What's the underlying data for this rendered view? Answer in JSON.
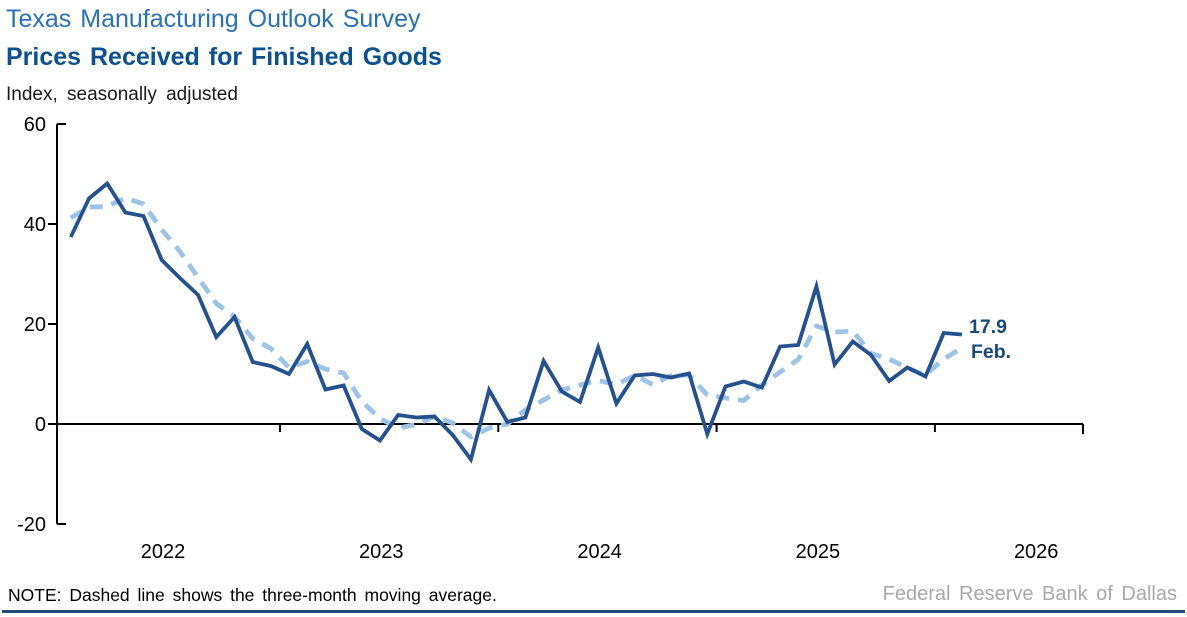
{
  "header": {
    "title_line1": "Texas Manufacturing Outlook Survey",
    "title_line2": "Prices Received for Finished Goods",
    "units_caption": "Index, seasonally adjusted"
  },
  "annotation": {
    "value_label": "17.9",
    "month_label": "Feb.",
    "color": "#17497E"
  },
  "footer": {
    "note": "NOTE: Dashed line shows the three-month moving average.",
    "source": "Federal Reserve Bank of Dallas"
  },
  "colors": {
    "title_primary": "#2970B8",
    "title_bold": "#0B5192",
    "axis_black": "#000000",
    "solid_line_navy": "#24518F",
    "dashed_line_lightblue": "#9DC3E6",
    "source_gray": "#A9A9A9",
    "bottom_rule_navy": "#1F4E79"
  },
  "chart_data": {
    "type": "line",
    "title": "Prices Received for Finished Goods",
    "subtitle": "Texas Manufacturing Outlook Survey",
    "ylabel": "Index, seasonally adjusted",
    "xlabel": "",
    "ylim": [
      -20,
      60
    ],
    "yticks": [
      60,
      40,
      20,
      0,
      -20
    ],
    "grid": false,
    "legend_position": "none",
    "axis_color": "#000000",
    "x_unit": "month",
    "x_start_month": "2022-01",
    "x_end_month": "2026-02",
    "x_tick_years": [
      "2022",
      "2023",
      "2024",
      "2025",
      "2026"
    ],
    "latest_point": {
      "month": "Feb.",
      "value": 17.9
    },
    "series": [
      {
        "name": "Prices received for finished goods (monthly index)",
        "style": "solid",
        "color": "#24518F",
        "values": [
          37.4,
          45.1,
          48.1,
          42.3,
          41.6,
          32.8,
          29.2,
          25.8,
          17.4,
          21.4,
          12.4,
          11.6,
          10.0,
          16.0,
          6.9,
          7.7,
          -1.0,
          -3.3,
          1.8,
          1.3,
          1.5,
          -2.2,
          -7.1,
          6.8,
          0.4,
          1.3,
          12.6,
          6.5,
          4.4,
          15.3,
          4.1,
          9.7,
          10.0,
          9.3,
          10.1,
          -2.0,
          7.5,
          8.5,
          7.3,
          15.5,
          15.8,
          27.5,
          11.9,
          16.5,
          13.8,
          8.6,
          11.3,
          9.5,
          18.2,
          17.9
        ]
      },
      {
        "name": "Three-month moving average",
        "style": "dashed",
        "color": "#9DC3E6",
        "values": [
          41.2,
          43.4,
          43.5,
          45.2,
          44.0,
          38.9,
          34.5,
          29.3,
          24.1,
          21.5,
          17.1,
          15.1,
          11.3,
          12.5,
          11.0,
          10.2,
          4.5,
          1.1,
          -0.8,
          -0.1,
          1.5,
          0.2,
          -2.6,
          -0.8,
          0.0,
          2.8,
          4.8,
          6.8,
          7.8,
          8.7,
          7.9,
          9.7,
          7.9,
          9.7,
          9.8,
          5.8,
          5.2,
          4.7,
          7.8,
          10.4,
          12.9,
          19.6,
          18.4,
          18.6,
          14.1,
          13.0,
          11.2,
          9.8,
          13.0,
          15.2
        ]
      }
    ]
  }
}
